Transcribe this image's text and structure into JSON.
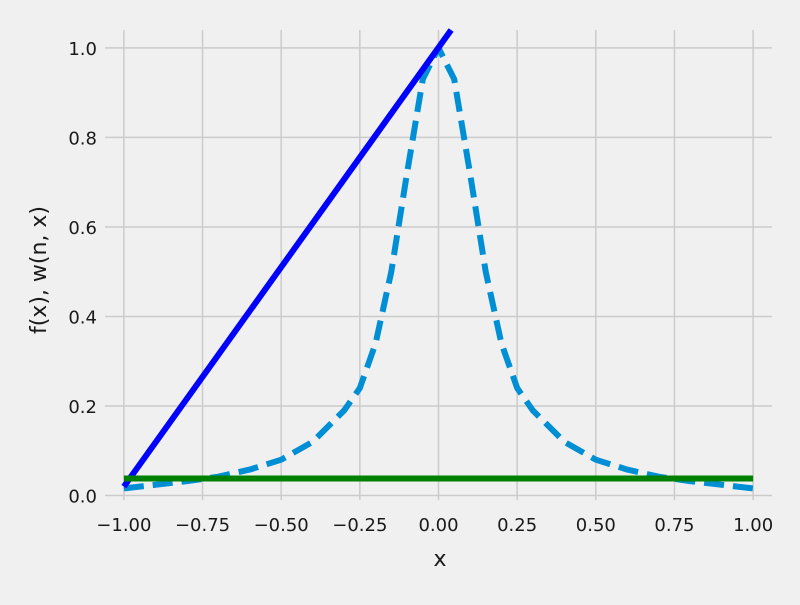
{
  "chart_data": {
    "type": "line",
    "xlabel": "x",
    "ylabel": "f(x), w(n, x)",
    "xlim": [
      -1.06,
      1.06
    ],
    "ylim": [
      -0.01,
      1.04
    ],
    "xticks": [
      -1.0,
      -0.75,
      -0.5,
      -0.25,
      0.0,
      0.25,
      0.5,
      0.75,
      1.0
    ],
    "xtick_labels": [
      "−1.00",
      "−0.75",
      "−0.50",
      "−0.25",
      "0.00",
      "0.25",
      "0.50",
      "0.75",
      "1.00"
    ],
    "yticks": [
      0.0,
      0.2,
      0.4,
      0.6,
      0.8,
      1.0
    ],
    "ytick_labels": [
      "0.0",
      "0.2",
      "0.4",
      "0.6",
      "0.8",
      "1.0"
    ],
    "grid": true,
    "series": [
      {
        "style": "dashed",
        "color": "#008fd5",
        "x": [
          -1.0,
          -0.9,
          -0.8,
          -0.7,
          -0.6,
          -0.5,
          -0.4,
          -0.3,
          -0.25,
          -0.2,
          -0.15,
          -0.1,
          -0.05,
          0.0,
          0.05,
          0.1,
          0.15,
          0.2,
          0.25,
          0.3,
          0.4,
          0.5,
          0.6,
          0.7,
          0.8,
          0.9,
          1.0
        ],
        "y": [
          0.016,
          0.024,
          0.032,
          0.042,
          0.058,
          0.08,
          0.12,
          0.19,
          0.24,
          0.34,
          0.5,
          0.72,
          0.93,
          1.0,
          0.93,
          0.72,
          0.5,
          0.34,
          0.24,
          0.19,
          0.12,
          0.08,
          0.058,
          0.042,
          0.032,
          0.024,
          0.016
        ]
      },
      {
        "style": "solid",
        "color": "#0000ff",
        "x": [
          -1.0,
          0.04
        ],
        "y": [
          0.02,
          1.04
        ]
      },
      {
        "style": "solid",
        "color": "#008000",
        "x": [
          -1.0,
          1.0
        ],
        "y": [
          0.038,
          0.038
        ]
      }
    ]
  }
}
